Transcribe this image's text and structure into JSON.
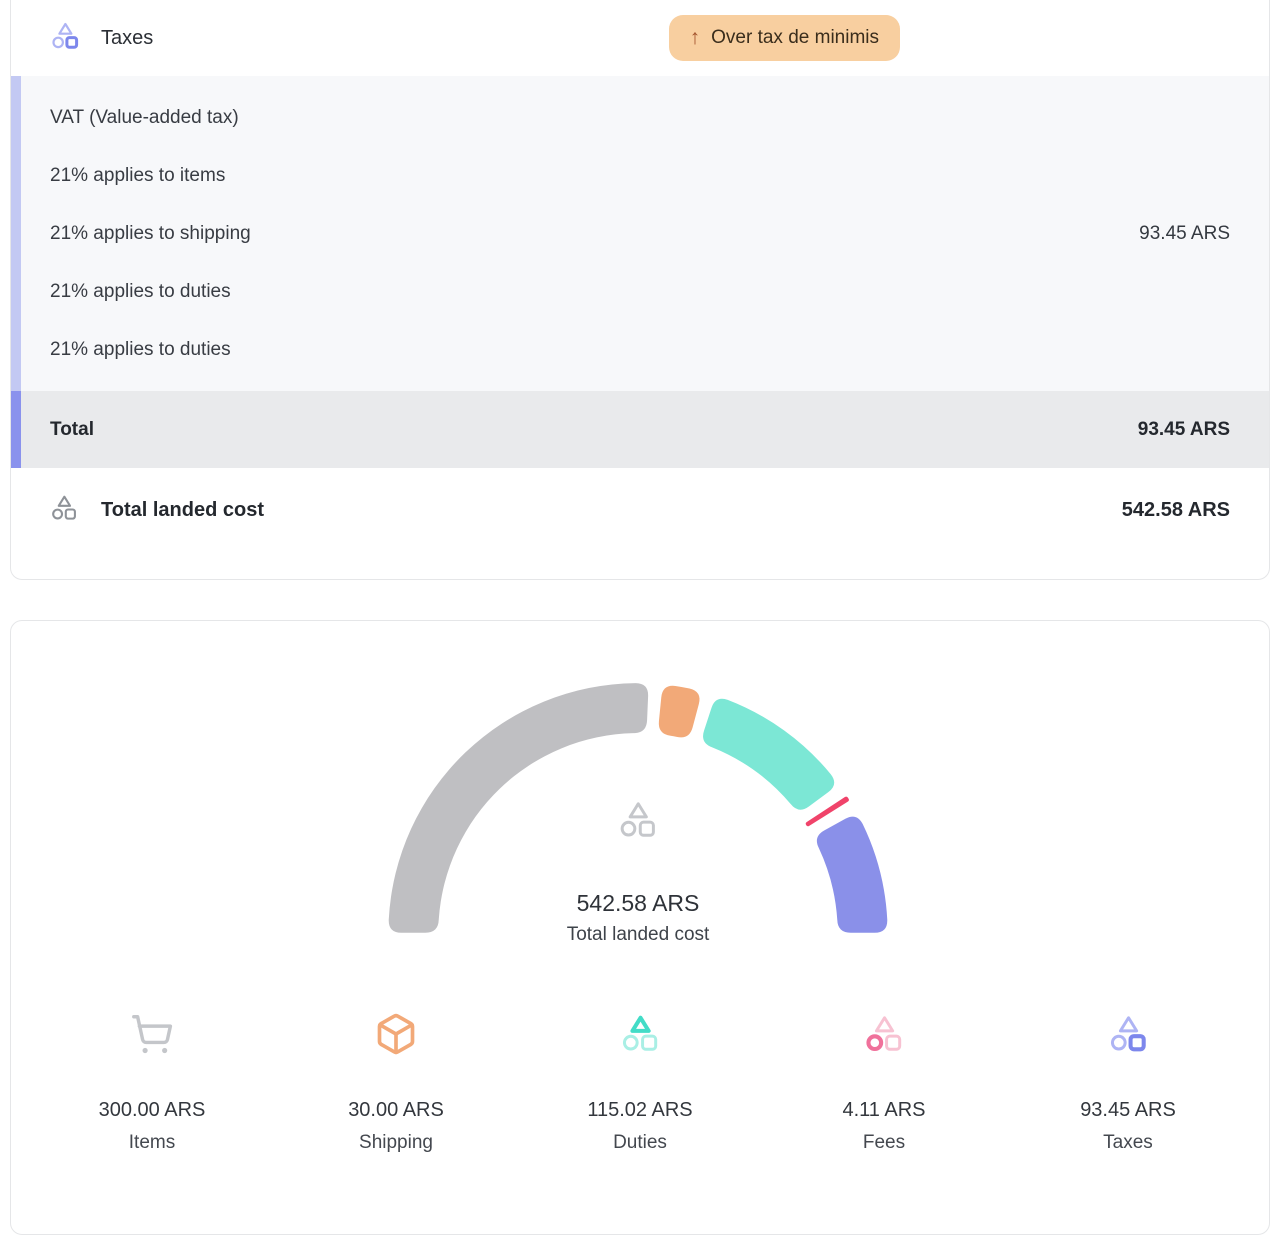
{
  "taxes_card": {
    "title": "Taxes",
    "badge": {
      "arrow": "↑",
      "label": "Over tax de minimis"
    },
    "vat_section": {
      "lines": [
        "VAT (Value-added tax)",
        "21% applies to items",
        "21% applies to shipping",
        "21% applies to duties",
        "21% applies to duties"
      ],
      "amount": "93.45 ARS"
    },
    "total_row": {
      "label": "Total",
      "amount": "93.45 ARS"
    },
    "landed_row": {
      "label": "Total landed cost",
      "amount": "542.58 ARS"
    }
  },
  "breakdown_card": {
    "center_value": "542.58 ARS",
    "center_label": "Total landed cost"
  },
  "chart_data": {
    "type": "pie",
    "variant": "half-donut-gauge",
    "categories": [
      "Items",
      "Shipping",
      "Duties",
      "Fees",
      "Taxes"
    ],
    "values": [
      300.0,
      30.0,
      115.02,
      4.11,
      93.45
    ],
    "display_values": [
      "300.00 ARS",
      "30.00 ARS",
      "115.02 ARS",
      "4.11 ARS",
      "93.45 ARS"
    ],
    "total": 542.58,
    "total_display": "542.58 ARS",
    "currency": "ARS",
    "center_label": "Total landed cost",
    "colors": [
      "#bfbfc2",
      "#f2a978",
      "#7ce7d5",
      "#f0436a",
      "#8a90e9"
    ],
    "legend_icons": [
      "cart-icon",
      "package-icon",
      "tcs-teal-icon",
      "tcs-pink-icon",
      "tcs-purple-icon"
    ],
    "arc_span_deg": 180,
    "gap_deg": 3.2,
    "legend_position": "bottom"
  },
  "icon_palettes": {
    "purple": {
      "triangle": "#aeb4f4",
      "circle": "#aeb4f4",
      "square": "#7d87ec",
      "bold": "square"
    },
    "gray": {
      "triangle": "#8e9298",
      "circle": "#8e9298",
      "square": "#8e9298",
      "bold": ""
    },
    "gray_light": {
      "triangle": "#c5c7cb",
      "circle": "#c5c7cb",
      "square": "#c5c7cb",
      "bold": ""
    },
    "teal": {
      "triangle": "#43dcc7",
      "circle": "#a9efe5",
      "square": "#a9efe5",
      "bold": "triangle"
    },
    "pink": {
      "triangle": "#f7c2d2",
      "circle": "#f0719b",
      "square": "#f7c2d2",
      "bold": "circle"
    },
    "cart_color": "#c4c6ca",
    "package_color": "#f2a978"
  }
}
